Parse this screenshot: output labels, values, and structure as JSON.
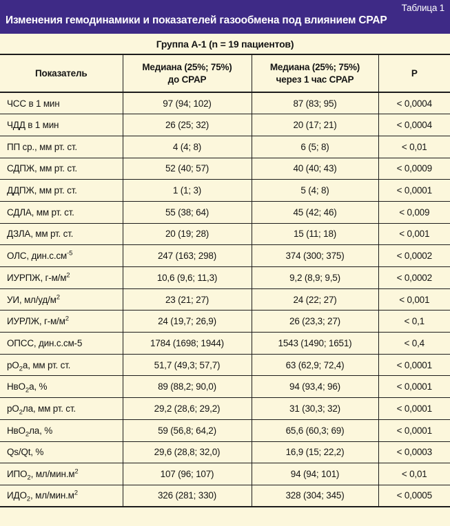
{
  "banner": {
    "tag": "Таблица 1",
    "title": "Изменения гемодинамики и показателей газообмена под влиянием CPAP"
  },
  "group_header": "Группа А-1 (n = 19 пациентов)",
  "colors": {
    "banner_bg": "#3e2a86",
    "banner_text": "#ffffff",
    "page_bg": "#fcf7dc",
    "line": "#1b1b1b"
  },
  "table": {
    "columns": [
      {
        "line1": "Показатель",
        "line2": ""
      },
      {
        "line1": "Медиана (25%; 75%)",
        "line2": "до CPAP"
      },
      {
        "line1": "Медиана (25%; 75%)",
        "line2": "через 1 час CPAP"
      },
      {
        "line1": "Р",
        "line2": ""
      }
    ],
    "rows": [
      {
        "indicator": [
          [
            "t",
            "ЧСС в 1 мин"
          ]
        ],
        "before": "97 (94; 102)",
        "after": "87 (83; 95)",
        "p": "< 0,0004"
      },
      {
        "indicator": [
          [
            "t",
            "ЧДД в 1 мин"
          ]
        ],
        "before": "26 (25; 32)",
        "after": "20 (17; 21)",
        "p": "< 0,0004"
      },
      {
        "indicator": [
          [
            "t",
            "ПП ср., мм рт. ст."
          ]
        ],
        "before": "4 (4; 8)",
        "after": "6 (5; 8)",
        "p": "< 0,01"
      },
      {
        "indicator": [
          [
            "t",
            "СДПЖ, мм рт. ст."
          ]
        ],
        "before": "52 (40; 57)",
        "after": "40 (40; 43)",
        "p": "< 0,0009"
      },
      {
        "indicator": [
          [
            "t",
            "ДДПЖ, мм рт. ст."
          ]
        ],
        "before": "1 (1; 3)",
        "after": "5 (4; 8)",
        "p": "< 0,0001"
      },
      {
        "indicator": [
          [
            "t",
            "СДЛА, мм рт. ст."
          ]
        ],
        "before": "55 (38; 64)",
        "after": "45 (42; 46)",
        "p": "< 0,009"
      },
      {
        "indicator": [
          [
            "t",
            "ДЗЛА, мм рт. ст."
          ]
        ],
        "before": "20 (19; 28)",
        "after": "15 (11; 18)",
        "p": "< 0,001"
      },
      {
        "indicator": [
          [
            "t",
            "ОЛС, дин.с.см"
          ],
          [
            "sup",
            "-5"
          ]
        ],
        "before": "247 (163; 298)",
        "after": "374 (300; 375)",
        "p": "< 0,0002"
      },
      {
        "indicator": [
          [
            "t",
            "ИУРПЖ, г-м/м"
          ],
          [
            "sup",
            "2"
          ]
        ],
        "before": "10,6 (9,6; 11,3)",
        "after": "9,2 (8,9; 9,5)",
        "p": "< 0,0002"
      },
      {
        "indicator": [
          [
            "t",
            "УИ, мл/уд/м"
          ],
          [
            "sup",
            "2"
          ]
        ],
        "before": "23 (21; 27)",
        "after": "24 (22; 27)",
        "p": "< 0,001"
      },
      {
        "indicator": [
          [
            "t",
            "ИУРЛЖ, г-м/м"
          ],
          [
            "sup",
            "2"
          ]
        ],
        "before": "24 (19,7; 26,9)",
        "after": "26 (23,3; 27)",
        "p": "< 0,1"
      },
      {
        "indicator": [
          [
            "t",
            "ОПСС, дин.с.см-5"
          ]
        ],
        "before": "1784 (1698; 1944)",
        "after": "1543 (1490; 1651)",
        "p": "< 0,4"
      },
      {
        "indicator": [
          [
            "t",
            "рО"
          ],
          [
            "sub",
            "2"
          ],
          [
            "t",
            "а, мм рт. ст."
          ]
        ],
        "before": "51,7 (49,3; 57,7)",
        "after": "63 (62,9; 72,4)",
        "p": "< 0,0001"
      },
      {
        "indicator": [
          [
            "t",
            "НвО"
          ],
          [
            "sub",
            "2"
          ],
          [
            "t",
            "а, %"
          ]
        ],
        "before": "89 (88,2; 90,0)",
        "after": "94 (93,4; 96)",
        "p": "< 0,0001"
      },
      {
        "indicator": [
          [
            "t",
            "рО"
          ],
          [
            "sub",
            "2"
          ],
          [
            "t",
            "ла, мм рт. ст."
          ]
        ],
        "before": "29,2 (28,6; 29,2)",
        "after": "31 (30,3; 32)",
        "p": "< 0,0001"
      },
      {
        "indicator": [
          [
            "t",
            "НвО"
          ],
          [
            "sub",
            "2"
          ],
          [
            "t",
            "ла, %"
          ]
        ],
        "before": "59 (56,8; 64,2)",
        "after": "65,6 (60,3; 69)",
        "p": "< 0,0001"
      },
      {
        "indicator": [
          [
            "t",
            "Qs/Qt, %"
          ]
        ],
        "before": "29,6 (28,8; 32,0)",
        "after": "16,9 (15; 22,2)",
        "p": "< 0,0003"
      },
      {
        "indicator": [
          [
            "t",
            "ИПО"
          ],
          [
            "sub",
            "2"
          ],
          [
            "t",
            ", мл/мин.м"
          ],
          [
            "sup",
            "2"
          ]
        ],
        "before": "107 (96; 107)",
        "after": "94 (94; 101)",
        "p": "< 0,01"
      },
      {
        "indicator": [
          [
            "t",
            "ИДО"
          ],
          [
            "sub",
            "2"
          ],
          [
            "t",
            ", мл/мин.м"
          ],
          [
            "sup",
            "2"
          ]
        ],
        "before": "326 (281; 330)",
        "after": "328 (304; 345)",
        "p": "< 0,0005"
      }
    ]
  }
}
